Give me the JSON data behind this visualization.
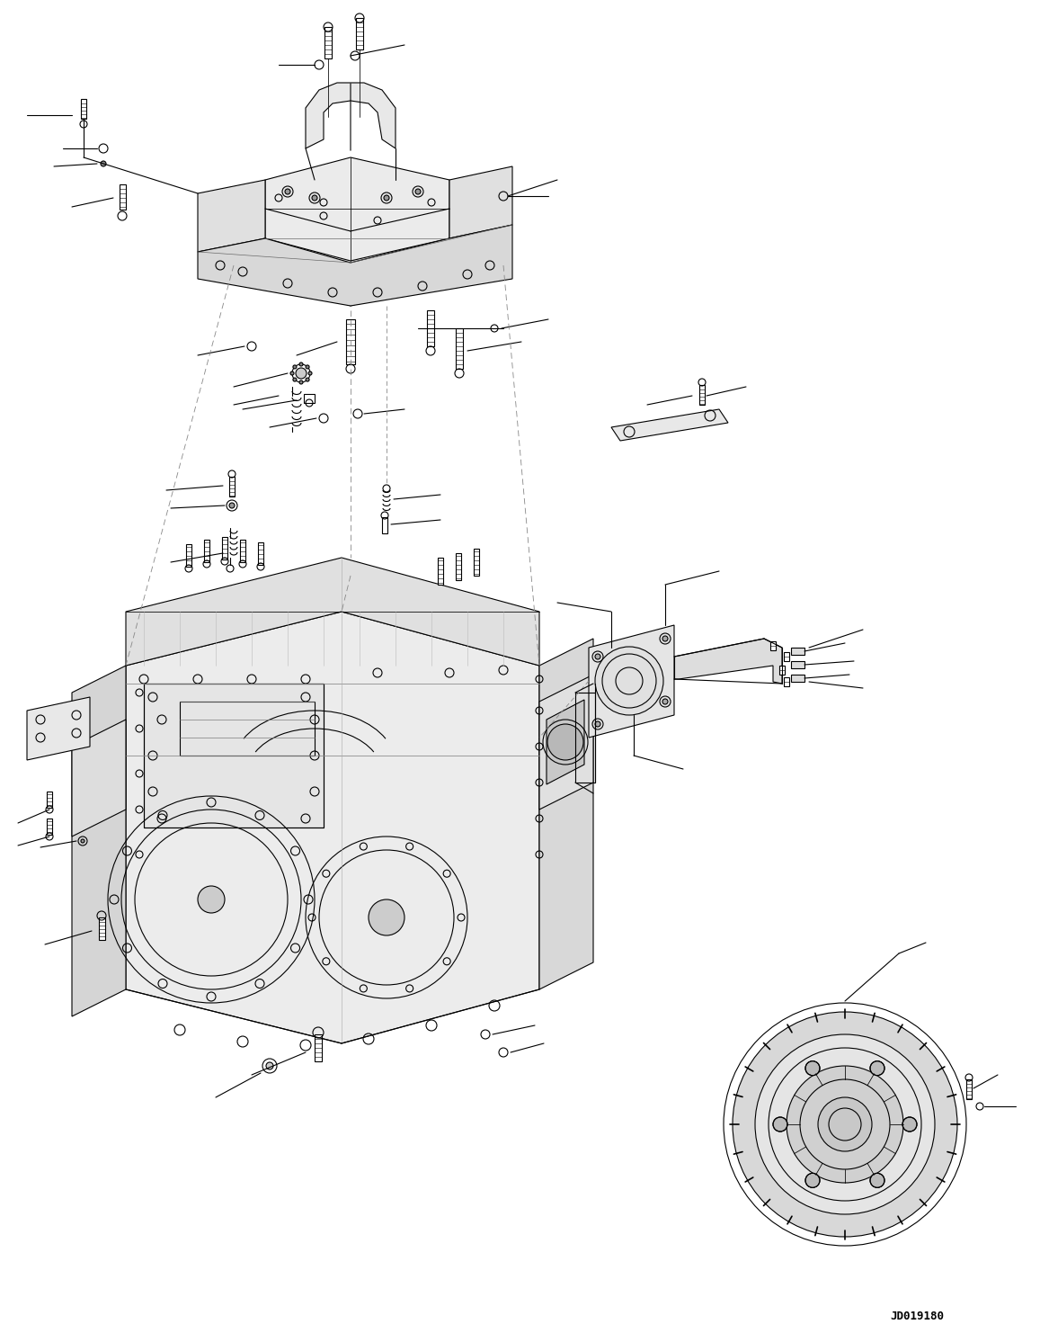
{
  "bg_color": "#ffffff",
  "line_color": "#000000",
  "line_width": 0.8,
  "fig_width": 11.57,
  "fig_height": 14.92,
  "watermark": "JD019180",
  "title": ""
}
